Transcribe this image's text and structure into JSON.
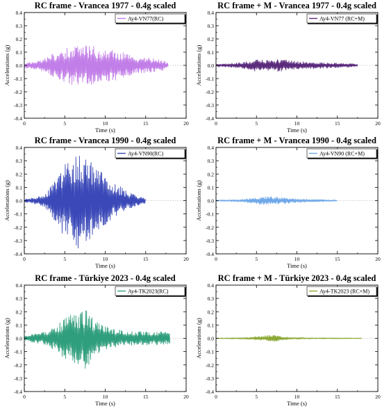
{
  "chart_data": [
    {
      "type": "line",
      "title": "RC frame - Vrancea 1977 - 0.4g scaled",
      "xlabel": "Time (s)",
      "ylabel": "Accelerations (g)",
      "xlim": [
        0,
        20
      ],
      "ylim": [
        -0.4,
        0.4
      ],
      "xticks": [
        0,
        5,
        10,
        15,
        20
      ],
      "yticks": [
        -0.4,
        -0.3,
        -0.2,
        -0.1,
        0.0,
        0.1,
        0.2,
        0.3,
        0.4
      ],
      "legend_position": "top-right",
      "series": [
        {
          "name": "Ay4-VN77(RC)",
          "color": "#c27ee8",
          "duration": 17.8,
          "envelope": [
            [
              0,
              0.02
            ],
            [
              1,
              0.03
            ],
            [
              2,
              0.04
            ],
            [
              3,
              0.07
            ],
            [
              4,
              0.1
            ],
            [
              5,
              0.13
            ],
            [
              6,
              0.15
            ],
            [
              7,
              0.14
            ],
            [
              8,
              0.16
            ],
            [
              9,
              0.14
            ],
            [
              10,
              0.12
            ],
            [
              11,
              0.12
            ],
            [
              12,
              0.1
            ],
            [
              13,
              0.08
            ],
            [
              14,
              0.06
            ],
            [
              15,
              0.06
            ],
            [
              16,
              0.05
            ],
            [
              17,
              0.04
            ],
            [
              17.8,
              0.02
            ]
          ]
        }
      ]
    },
    {
      "type": "line",
      "title": "RC frame + M - Vrancea 1977 - 0.4g scaled",
      "xlabel": "Time (s)",
      "ylabel": "Accelerations (g)",
      "xlim": [
        0,
        20
      ],
      "ylim": [
        -0.4,
        0.4
      ],
      "xticks": [
        0,
        5,
        10,
        15,
        20
      ],
      "yticks": [
        -0.4,
        -0.3,
        -0.2,
        -0.1,
        0.0,
        0.1,
        0.2,
        0.3,
        0.4
      ],
      "legend_position": "top-right",
      "series": [
        {
          "name": "Ay4-VN77 (RC+M)",
          "color": "#5a2a7c",
          "duration": 17.5,
          "envelope": [
            [
              0,
              0.01
            ],
            [
              2,
              0.015
            ],
            [
              4,
              0.03
            ],
            [
              5,
              0.05
            ],
            [
              6,
              0.04
            ],
            [
              7,
              0.04
            ],
            [
              8,
              0.05
            ],
            [
              9,
              0.04
            ],
            [
              10,
              0.03
            ],
            [
              12,
              0.025
            ],
            [
              14,
              0.02
            ],
            [
              16,
              0.015
            ],
            [
              17.5,
              0.01
            ]
          ]
        }
      ]
    },
    {
      "type": "line",
      "title": "RC frame - Vrancea 1990 - 0.4g scaled",
      "xlabel": "Time (s)",
      "ylabel": "Accelerations (g)",
      "xlim": [
        0,
        20
      ],
      "ylim": [
        -0.4,
        0.4
      ],
      "xticks": [
        0,
        5,
        10,
        15,
        20
      ],
      "yticks": [
        -0.4,
        -0.3,
        -0.2,
        -0.1,
        0.0,
        0.1,
        0.2,
        0.3,
        0.4
      ],
      "legend_position": "top-right",
      "series": [
        {
          "name": "Ay4-VN90(RC)",
          "color": "#3a48b8",
          "duration": 15.0,
          "envelope": [
            [
              0,
              0.01
            ],
            [
              1,
              0.02
            ],
            [
              2,
              0.04
            ],
            [
              3,
              0.08
            ],
            [
              4,
              0.18
            ],
            [
              5,
              0.28
            ],
            [
              6,
              0.37
            ],
            [
              7,
              0.36
            ],
            [
              8,
              0.3
            ],
            [
              9,
              0.25
            ],
            [
              10,
              0.18
            ],
            [
              11,
              0.14
            ],
            [
              12,
              0.1
            ],
            [
              13,
              0.06
            ],
            [
              14,
              0.04
            ],
            [
              15,
              0.02
            ]
          ]
        }
      ]
    },
    {
      "type": "line",
      "title": "RC frame + M - Vrancea 1990 - 0.4g scaled",
      "xlabel": "Time (s)",
      "ylabel": "Accelerations (g)",
      "xlim": [
        0,
        20
      ],
      "ylim": [
        -0.4,
        0.4
      ],
      "xticks": [
        0,
        5,
        10,
        15,
        20
      ],
      "yticks": [
        -0.4,
        -0.3,
        -0.2,
        -0.1,
        0.0,
        0.1,
        0.2,
        0.3,
        0.4
      ],
      "legend_position": "top-right",
      "series": [
        {
          "name": "Ay4-VN90 (RC+M)",
          "color": "#6fa8e8",
          "duration": 15.0,
          "envelope": [
            [
              0,
              0.005
            ],
            [
              3,
              0.008
            ],
            [
              4,
              0.015
            ],
            [
              5,
              0.025
            ],
            [
              6,
              0.03
            ],
            [
              7,
              0.03
            ],
            [
              8,
              0.025
            ],
            [
              9,
              0.02
            ],
            [
              10,
              0.015
            ],
            [
              12,
              0.01
            ],
            [
              15,
              0.005
            ]
          ]
        }
      ]
    },
    {
      "type": "line",
      "title": "RC frame - Türkiye 2023 - 0.4g scaled",
      "xlabel": "Time (s)",
      "ylabel": "Accelerations (g)",
      "xlim": [
        0,
        20
      ],
      "ylim": [
        -0.4,
        0.4
      ],
      "xticks": [
        0,
        5,
        10,
        15,
        20
      ],
      "yticks": [
        -0.4,
        -0.3,
        -0.2,
        -0.1,
        0.0,
        0.1,
        0.2,
        0.3,
        0.4
      ],
      "legend_position": "top-right",
      "series": [
        {
          "name": "Ay4-TK2023(RC)",
          "color": "#2f9e7c",
          "duration": 18.0,
          "envelope": [
            [
              0,
              0.02
            ],
            [
              1,
              0.03
            ],
            [
              2,
              0.04
            ],
            [
              3,
              0.06
            ],
            [
              4,
              0.1
            ],
            [
              5,
              0.16
            ],
            [
              6,
              0.18
            ],
            [
              7,
              0.2
            ],
            [
              7.6,
              0.23
            ],
            [
              8.5,
              0.15
            ],
            [
              9.5,
              0.1
            ],
            [
              10.5,
              0.08
            ],
            [
              12,
              0.06
            ],
            [
              14,
              0.05
            ],
            [
              16,
              0.05
            ],
            [
              17,
              0.05
            ],
            [
              18,
              0.04
            ]
          ]
        }
      ]
    },
    {
      "type": "line",
      "title": "RC frame + M - Türkiye 2023 - 0.4g scaled",
      "xlabel": "Time (s)",
      "ylabel": "Accelerations (g)",
      "xlim": [
        0,
        20
      ],
      "ylim": [
        -0.4,
        0.4
      ],
      "xticks": [
        0,
        5,
        10,
        15,
        20
      ],
      "yticks": [
        -0.4,
        -0.3,
        -0.2,
        -0.1,
        0.0,
        0.1,
        0.2,
        0.3,
        0.4
      ],
      "legend_position": "top-right",
      "series": [
        {
          "name": "Ay4-TK2023 (RC+M)",
          "color": "#8aa832",
          "duration": 18.0,
          "envelope": [
            [
              0,
              0.003
            ],
            [
              3,
              0.005
            ],
            [
              4.5,
              0.01
            ],
            [
              5.5,
              0.015
            ],
            [
              6.5,
              0.025
            ],
            [
              7.2,
              0.025
            ],
            [
              8,
              0.015
            ],
            [
              9,
              0.008
            ],
            [
              12,
              0.004
            ],
            [
              18,
              0.003
            ]
          ]
        }
      ]
    }
  ]
}
